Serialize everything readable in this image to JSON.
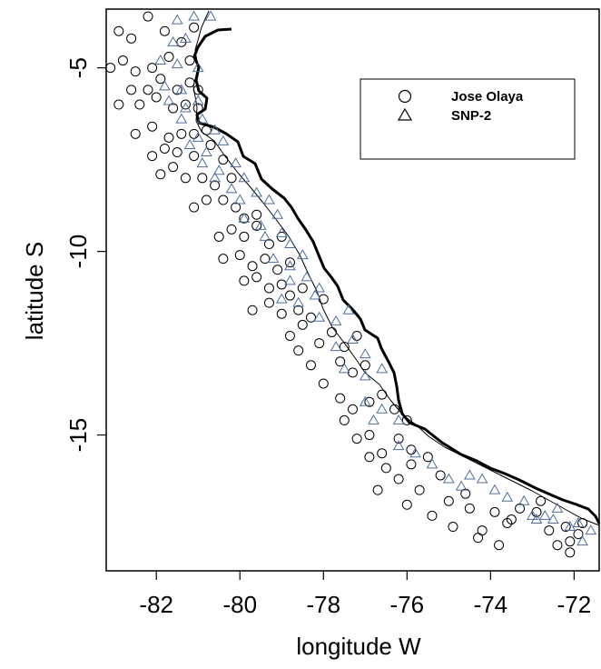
{
  "chart_data": {
    "type": "scatter",
    "xlabel": "longitude W",
    "ylabel": "latitude S",
    "xlim": [
      -83.2,
      -71.4
    ],
    "ylim": [
      -18.7,
      -3.4
    ],
    "x_ticks": [
      -82,
      -80,
      -78,
      -76,
      -74,
      -72
    ],
    "y_ticks": [
      -5,
      -10,
      -15
    ],
    "legend_position": "top-right",
    "series": [
      {
        "name": "Jose Olaya",
        "marker": "circle",
        "color": "#000000",
        "points": [
          [
            -82.9,
            -4.0
          ],
          [
            -82.6,
            -4.2
          ],
          [
            -82.2,
            -3.6
          ],
          [
            -81.8,
            -4.0
          ],
          [
            -81.4,
            -4.3
          ],
          [
            -81.1,
            -3.9
          ],
          [
            -83.1,
            -5.0
          ],
          [
            -82.8,
            -4.8
          ],
          [
            -82.5,
            -5.1
          ],
          [
            -82.1,
            -5.0
          ],
          [
            -81.7,
            -4.7
          ],
          [
            -81.2,
            -4.8
          ],
          [
            -82.6,
            -5.6
          ],
          [
            -82.2,
            -5.6
          ],
          [
            -81.9,
            -5.3
          ],
          [
            -81.5,
            -5.6
          ],
          [
            -81.2,
            -5.4
          ],
          [
            -81.0,
            -5.6
          ],
          [
            -82.9,
            -6.0
          ],
          [
            -82.4,
            -6.0
          ],
          [
            -82.0,
            -5.8
          ],
          [
            -81.6,
            -6.1
          ],
          [
            -81.3,
            -6.0
          ],
          [
            -81.0,
            -6.1
          ],
          [
            -82.5,
            -6.8
          ],
          [
            -82.1,
            -6.6
          ],
          [
            -81.7,
            -6.9
          ],
          [
            -81.4,
            -6.8
          ],
          [
            -81.1,
            -6.8
          ],
          [
            -80.8,
            -6.7
          ],
          [
            -82.1,
            -7.4
          ],
          [
            -81.8,
            -7.2
          ],
          [
            -81.5,
            -7.3
          ],
          [
            -81.1,
            -7.4
          ],
          [
            -80.7,
            -7.1
          ],
          [
            -80.4,
            -7.5
          ],
          [
            -81.9,
            -7.9
          ],
          [
            -81.6,
            -7.7
          ],
          [
            -81.3,
            -8.0
          ],
          [
            -80.9,
            -8.0
          ],
          [
            -80.6,
            -8.2
          ],
          [
            -80.2,
            -8.0
          ],
          [
            -81.1,
            -8.8
          ],
          [
            -80.8,
            -8.6
          ],
          [
            -80.4,
            -8.6
          ],
          [
            -80.1,
            -8.8
          ],
          [
            -79.9,
            -9.1
          ],
          [
            -79.6,
            -9.0
          ],
          [
            -80.5,
            -9.6
          ],
          [
            -80.2,
            -9.4
          ],
          [
            -79.9,
            -9.6
          ],
          [
            -79.6,
            -9.3
          ],
          [
            -79.3,
            -9.8
          ],
          [
            -79.0,
            -9.6
          ],
          [
            -80.4,
            -10.2
          ],
          [
            -80.0,
            -10.1
          ],
          [
            -79.7,
            -10.4
          ],
          [
            -79.4,
            -10.2
          ],
          [
            -79.1,
            -10.5
          ],
          [
            -78.8,
            -10.3
          ],
          [
            -79.9,
            -10.8
          ],
          [
            -79.6,
            -10.7
          ],
          [
            -79.3,
            -11.0
          ],
          [
            -79.0,
            -10.9
          ],
          [
            -78.8,
            -11.2
          ],
          [
            -78.5,
            -11.0
          ],
          [
            -79.7,
            -11.6
          ],
          [
            -79.3,
            -11.4
          ],
          [
            -79.0,
            -11.7
          ],
          [
            -78.6,
            -11.6
          ],
          [
            -78.3,
            -11.8
          ],
          [
            -78.0,
            -11.3
          ],
          [
            -78.8,
            -12.3
          ],
          [
            -78.5,
            -12.0
          ],
          [
            -78.1,
            -12.5
          ],
          [
            -77.8,
            -12.2
          ],
          [
            -77.5,
            -12.6
          ],
          [
            -77.2,
            -12.3
          ],
          [
            -78.6,
            -12.7
          ],
          [
            -78.3,
            -13.1
          ],
          [
            -78.0,
            -13.6
          ],
          [
            -77.6,
            -13.0
          ],
          [
            -77.3,
            -13.3
          ],
          [
            -77.0,
            -13.1
          ],
          [
            -77.6,
            -14.0
          ],
          [
            -77.3,
            -14.3
          ],
          [
            -76.9,
            -14.1
          ],
          [
            -76.6,
            -13.9
          ],
          [
            -76.3,
            -14.3
          ],
          [
            -76.0,
            -14.6
          ],
          [
            -77.5,
            -14.6
          ],
          [
            -77.2,
            -15.1
          ],
          [
            -76.9,
            -15.0
          ],
          [
            -76.6,
            -15.5
          ],
          [
            -76.2,
            -15.1
          ],
          [
            -75.9,
            -15.4
          ],
          [
            -76.9,
            -15.6
          ],
          [
            -76.5,
            -15.9
          ],
          [
            -76.2,
            -16.2
          ],
          [
            -75.9,
            -15.8
          ],
          [
            -75.5,
            -15.6
          ],
          [
            -75.2,
            -16.1
          ],
          [
            -76.7,
            -16.5
          ],
          [
            -76.0,
            -16.9
          ],
          [
            -75.7,
            -16.5
          ],
          [
            -75.4,
            -17.2
          ],
          [
            -75.0,
            -16.8
          ],
          [
            -74.6,
            -16.6
          ],
          [
            -74.9,
            -17.5
          ],
          [
            -74.5,
            -17.0
          ],
          [
            -74.2,
            -17.6
          ],
          [
            -73.9,
            -17.1
          ],
          [
            -73.6,
            -17.4
          ],
          [
            -73.3,
            -17.0
          ],
          [
            -74.3,
            -17.8
          ],
          [
            -73.8,
            -18.0
          ],
          [
            -73.5,
            -17.3
          ],
          [
            -72.9,
            -17.1
          ],
          [
            -72.6,
            -17.6
          ],
          [
            -72.2,
            -17.5
          ],
          [
            -72.1,
            -17.9
          ],
          [
            -72.1,
            -18.2
          ],
          [
            -71.9,
            -17.7
          ],
          [
            -71.8,
            -17.4
          ],
          [
            -72.4,
            -18.0
          ],
          [
            -72.8,
            -16.8
          ]
        ]
      },
      {
        "name": "SNP-2",
        "marker": "triangle",
        "color": "#4f6f9a",
        "points": [
          [
            -81.5,
            -3.7
          ],
          [
            -81.1,
            -3.6
          ],
          [
            -80.7,
            -3.6
          ],
          [
            -81.6,
            -4.3
          ],
          [
            -81.3,
            -4.2
          ],
          [
            -81.9,
            -4.8
          ],
          [
            -81.5,
            -4.9
          ],
          [
            -81.0,
            -5.0
          ],
          [
            -81.8,
            -5.5
          ],
          [
            -81.4,
            -5.6
          ],
          [
            -81.0,
            -5.9
          ],
          [
            -81.7,
            -5.9
          ],
          [
            -81.3,
            -6.1
          ],
          [
            -80.9,
            -6.4
          ],
          [
            -81.4,
            -6.4
          ],
          [
            -81.0,
            -6.9
          ],
          [
            -80.6,
            -6.7
          ],
          [
            -81.2,
            -7.1
          ],
          [
            -80.8,
            -7.3
          ],
          [
            -80.4,
            -7.0
          ],
          [
            -80.9,
            -7.6
          ],
          [
            -80.5,
            -7.8
          ],
          [
            -80.1,
            -7.6
          ],
          [
            -80.6,
            -8.0
          ],
          [
            -80.2,
            -8.3
          ],
          [
            -79.9,
            -8.0
          ],
          [
            -80.0,
            -8.6
          ],
          [
            -79.6,
            -8.4
          ],
          [
            -79.3,
            -8.6
          ],
          [
            -79.9,
            -9.1
          ],
          [
            -79.5,
            -9.3
          ],
          [
            -79.1,
            -9.0
          ],
          [
            -79.4,
            -9.6
          ],
          [
            -79.0,
            -9.5
          ],
          [
            -78.8,
            -9.8
          ],
          [
            -79.2,
            -10.2
          ],
          [
            -78.8,
            -10.4
          ],
          [
            -78.5,
            -10.1
          ],
          [
            -78.8,
            -10.8
          ],
          [
            -78.4,
            -10.7
          ],
          [
            -78.1,
            -11.0
          ],
          [
            -79.0,
            -11.3
          ],
          [
            -78.6,
            -11.4
          ],
          [
            -78.2,
            -11.2
          ],
          [
            -78.1,
            -11.8
          ],
          [
            -77.7,
            -11.9
          ],
          [
            -77.4,
            -11.6
          ],
          [
            -77.7,
            -12.6
          ],
          [
            -77.3,
            -12.4
          ],
          [
            -77.0,
            -12.8
          ],
          [
            -77.5,
            -13.2
          ],
          [
            -77.0,
            -13.4
          ],
          [
            -76.6,
            -13.2
          ],
          [
            -77.0,
            -14.1
          ],
          [
            -76.6,
            -14.3
          ],
          [
            -76.2,
            -14.6
          ],
          [
            -76.8,
            -14.6
          ],
          [
            -76.2,
            -15.3
          ],
          [
            -75.8,
            -15.5
          ],
          [
            -75.4,
            -15.8
          ],
          [
            -75.0,
            -16.2
          ],
          [
            -74.7,
            -16.4
          ],
          [
            -74.5,
            -16.1
          ],
          [
            -74.2,
            -16.2
          ],
          [
            -73.9,
            -16.5
          ],
          [
            -73.6,
            -16.7
          ],
          [
            -73.2,
            -16.8
          ],
          [
            -72.9,
            -17.3
          ],
          [
            -72.7,
            -17.2
          ],
          [
            -72.4,
            -17.0
          ],
          [
            -71.9,
            -17.4
          ],
          [
            -71.6,
            -17.6
          ],
          [
            -71.8,
            -17.9
          ],
          [
            -72.1,
            -17.5
          ],
          [
            -72.5,
            -17.3
          ],
          [
            -73.0,
            -17.2
          ]
        ]
      }
    ]
  }
}
